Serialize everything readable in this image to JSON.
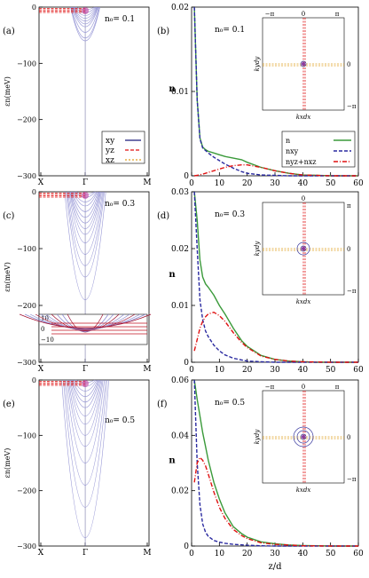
{
  "rows": [
    {
      "left": {
        "label": "(a)",
        "n0": "n₀= 0.1",
        "ylabel": "εn(meV)",
        "yticks": [
          "0",
          "−100",
          "−200",
          "−300"
        ],
        "xticks": [
          "X",
          "Γ",
          "M"
        ],
        "bottoms": [
          -5,
          -10,
          -15,
          -20,
          -25,
          -30,
          -35,
          -45,
          -55,
          -60
        ],
        "legend": [
          {
            "name": "xy",
            "color": "#1a1a7a",
            "dash": ""
          },
          {
            "name": "yz",
            "color": "#e01010",
            "dash": "4,2"
          },
          {
            "name": "xz",
            "color": "#e0a020",
            "dash": "2,2"
          }
        ]
      },
      "right": {
        "label": "(b)",
        "n0": "n₀= 0.1",
        "ylabel": "n",
        "ylim": [
          0,
          0.02
        ],
        "yticks": [
          "0",
          "0.01",
          "0.02"
        ],
        "ytickvals": [
          0,
          0.01,
          0.02
        ],
        "xticks": [
          "0",
          "10",
          "20",
          "30",
          "40",
          "50",
          "60"
        ],
        "legend": [
          {
            "name": "n",
            "color": "#3a9a3a",
            "dash": ""
          },
          {
            "name": "nxy",
            "color": "#2a2aa0",
            "dash": "4,2"
          },
          {
            "name": "nyz+nxz",
            "color": "#e01010",
            "dash": "5,2,1,2"
          }
        ],
        "inset": {
          "xlabel": "kxdx",
          "ylabel": "kydy",
          "ticks": [
            "−π",
            "0",
            "π",
            "−π"
          ]
        }
      }
    },
    {
      "left": {
        "label": "(c)",
        "n0": "n₀= 0.3",
        "ylabel": "εn(meV)",
        "yticks": [
          "0",
          "−100",
          "−200",
          "−300"
        ],
        "xticks": [
          "X",
          "Γ",
          "M"
        ],
        "bottoms": [
          -5,
          -10,
          -18,
          -25,
          -35,
          -45,
          -55,
          -65,
          -75,
          -90,
          -110,
          -130,
          -150,
          -190
        ],
        "inset_ticks": [
          "10",
          "0",
          "−10"
        ]
      },
      "right": {
        "label": "(d)",
        "n0": "n₀= 0.3",
        "ylabel": "n",
        "ylim": [
          0,
          0.03
        ],
        "yticks": [
          "0",
          "0.01",
          "0.02",
          "0.03"
        ],
        "ytickvals": [
          0,
          0.01,
          0.02,
          0.03
        ],
        "xticks": [
          "0",
          "10",
          "20",
          "30",
          "40",
          "50",
          "60"
        ],
        "inset": {
          "xlabel": "kxdx",
          "ylabel": "kydy",
          "ticks": [
            "π",
            "0",
            "−π"
          ]
        }
      }
    },
    {
      "left": {
        "label": "(e)",
        "n0": "n₀= 0.5",
        "ylabel": "εn(meV)",
        "yticks": [
          "0",
          "−100",
          "−200",
          "−300"
        ],
        "xticks": [
          "X",
          "Γ",
          "M"
        ],
        "bottoms": [
          -5,
          -12,
          -20,
          -30,
          -40,
          -50,
          -65,
          -80,
          -100,
          -120,
          -150,
          -190,
          -230,
          -285
        ]
      },
      "right": {
        "label": "(f)",
        "n0": "n₀= 0.5",
        "ylabel": "n",
        "ylim": [
          0,
          0.06
        ],
        "yticks": [
          "0",
          "0.02",
          "0.04",
          "0.06"
        ],
        "ytickvals": [
          0,
          0.02,
          0.04,
          0.06
        ],
        "xticks": [
          "0",
          "10",
          "20",
          "30",
          "40",
          "50",
          "60"
        ],
        "xlabel": "z/d",
        "inset": {
          "xlabel": "kxdx",
          "ylabel": "kydy",
          "ticks": [
            "−π",
            "0",
            "π",
            "−π"
          ]
        }
      }
    }
  ],
  "chart_data": [
    {
      "panel": "b",
      "type": "line",
      "xlim": [
        0,
        60
      ],
      "ylim": [
        0,
        0.02
      ],
      "series": [
        {
          "name": "n",
          "color": "#3a9a3a",
          "dash": "",
          "x": [
            1,
            2,
            3,
            4,
            5,
            6,
            8,
            10,
            12,
            15,
            18,
            20,
            25,
            30,
            35,
            40,
            45,
            50,
            60
          ],
          "y": [
            0.02,
            0.009,
            0.0045,
            0.0034,
            0.0031,
            0.0029,
            0.0027,
            0.0025,
            0.0023,
            0.0021,
            0.0019,
            0.0016,
            0.001,
            0.0006,
            0.0003,
            0.0001,
            5e-05,
            0.0,
            0.0
          ]
        },
        {
          "name": "nxy",
          "color": "#2a2aa0",
          "dash": "4,2",
          "x": [
            1,
            2,
            3,
            4,
            5,
            6,
            8,
            10,
            12,
            15,
            18,
            20,
            25,
            30,
            35,
            40,
            45,
            50,
            60
          ],
          "y": [
            0.02,
            0.009,
            0.0044,
            0.0033,
            0.003,
            0.0027,
            0.0022,
            0.0018,
            0.0014,
            0.0009,
            0.0005,
            0.0003,
            0.0001,
            5e-05,
            0.0,
            0.0,
            0.0,
            0.0,
            0.0
          ]
        },
        {
          "name": "nyz+nxz",
          "color": "#e01010",
          "dash": "5,2,1,2",
          "x": [
            1,
            2,
            4,
            6,
            8,
            10,
            12,
            15,
            18,
            20,
            25,
            30,
            35,
            40,
            45,
            50,
            60
          ],
          "y": [
            0.0,
            5e-05,
            0.0002,
            0.0004,
            0.0006,
            0.0008,
            0.001,
            0.0012,
            0.0013,
            0.0013,
            0.001,
            0.0006,
            0.0003,
            0.0001,
            5e-05,
            0.0,
            0.0
          ]
        }
      ]
    },
    {
      "panel": "d",
      "type": "line",
      "xlim": [
        0,
        60
      ],
      "ylim": [
        0,
        0.03
      ],
      "series": [
        {
          "name": "n",
          "color": "#3a9a3a",
          "dash": "",
          "x": [
            1,
            2,
            3,
            4,
            5,
            6,
            8,
            10,
            12,
            15,
            18,
            20,
            25,
            30,
            35,
            40,
            45,
            50,
            60
          ],
          "y": [
            0.03,
            0.025,
            0.018,
            0.015,
            0.0138,
            0.0132,
            0.0118,
            0.01,
            0.0085,
            0.006,
            0.0038,
            0.0028,
            0.0012,
            0.0005,
            0.0002,
            0.0001,
            0.0,
            0.0,
            0.0
          ]
        },
        {
          "name": "nxy",
          "color": "#2a2aa0",
          "dash": "4,2",
          "x": [
            1,
            2,
            3,
            4,
            5,
            6,
            8,
            10,
            12,
            15,
            18,
            20,
            25,
            30,
            40,
            50,
            60
          ],
          "y": [
            0.03,
            0.02,
            0.011,
            0.0075,
            0.0055,
            0.0045,
            0.003,
            0.002,
            0.0013,
            0.0007,
            0.0004,
            0.0002,
            0.0001,
            0.0,
            0.0,
            0.0,
            0.0
          ]
        },
        {
          "name": "nyz+nxz",
          "color": "#e01010",
          "dash": "5,2,1,2",
          "x": [
            1,
            2,
            3,
            4,
            5,
            6,
            8,
            10,
            12,
            15,
            18,
            20,
            25,
            30,
            35,
            40,
            50,
            60
          ],
          "y": [
            0.002,
            0.004,
            0.006,
            0.0072,
            0.008,
            0.0085,
            0.0088,
            0.0082,
            0.0072,
            0.0052,
            0.0035,
            0.0026,
            0.0011,
            0.0005,
            0.0002,
            0.0001,
            0.0,
            0.0
          ]
        }
      ]
    },
    {
      "panel": "f",
      "type": "line",
      "xlim": [
        0,
        60
      ],
      "ylim": [
        0,
        0.06
      ],
      "series": [
        {
          "name": "n",
          "color": "#3a9a3a",
          "dash": "",
          "x": [
            1,
            2,
            3,
            4,
            5,
            6,
            8,
            10,
            12,
            15,
            18,
            20,
            25,
            30,
            35,
            40,
            45,
            50,
            60
          ],
          "y": [
            0.06,
            0.053,
            0.047,
            0.041,
            0.036,
            0.031,
            0.023,
            0.017,
            0.012,
            0.007,
            0.0045,
            0.0032,
            0.0015,
            0.0008,
            0.0004,
            0.0002,
            0.0001,
            0.0,
            0.0
          ]
        },
        {
          "name": "nxy",
          "color": "#2a2aa0",
          "dash": "4,2",
          "x": [
            1,
            2,
            3,
            4,
            5,
            6,
            8,
            10,
            12,
            15,
            20,
            25,
            30,
            40,
            50,
            60
          ],
          "y": [
            0.06,
            0.03,
            0.015,
            0.008,
            0.005,
            0.0035,
            0.002,
            0.0014,
            0.001,
            0.0006,
            0.0003,
            0.0001,
            0.0,
            0.0,
            0.0,
            0.0
          ]
        },
        {
          "name": "nyz+nxz",
          "color": "#e01010",
          "dash": "5,2,1,2",
          "x": [
            1,
            2,
            3,
            4,
            5,
            6,
            8,
            10,
            12,
            15,
            18,
            20,
            25,
            30,
            40,
            50,
            60
          ],
          "y": [
            0.023,
            0.03,
            0.032,
            0.031,
            0.029,
            0.026,
            0.0195,
            0.014,
            0.01,
            0.006,
            0.0038,
            0.0027,
            0.0012,
            0.0006,
            0.0001,
            0.0,
            0.0
          ]
        }
      ]
    }
  ]
}
